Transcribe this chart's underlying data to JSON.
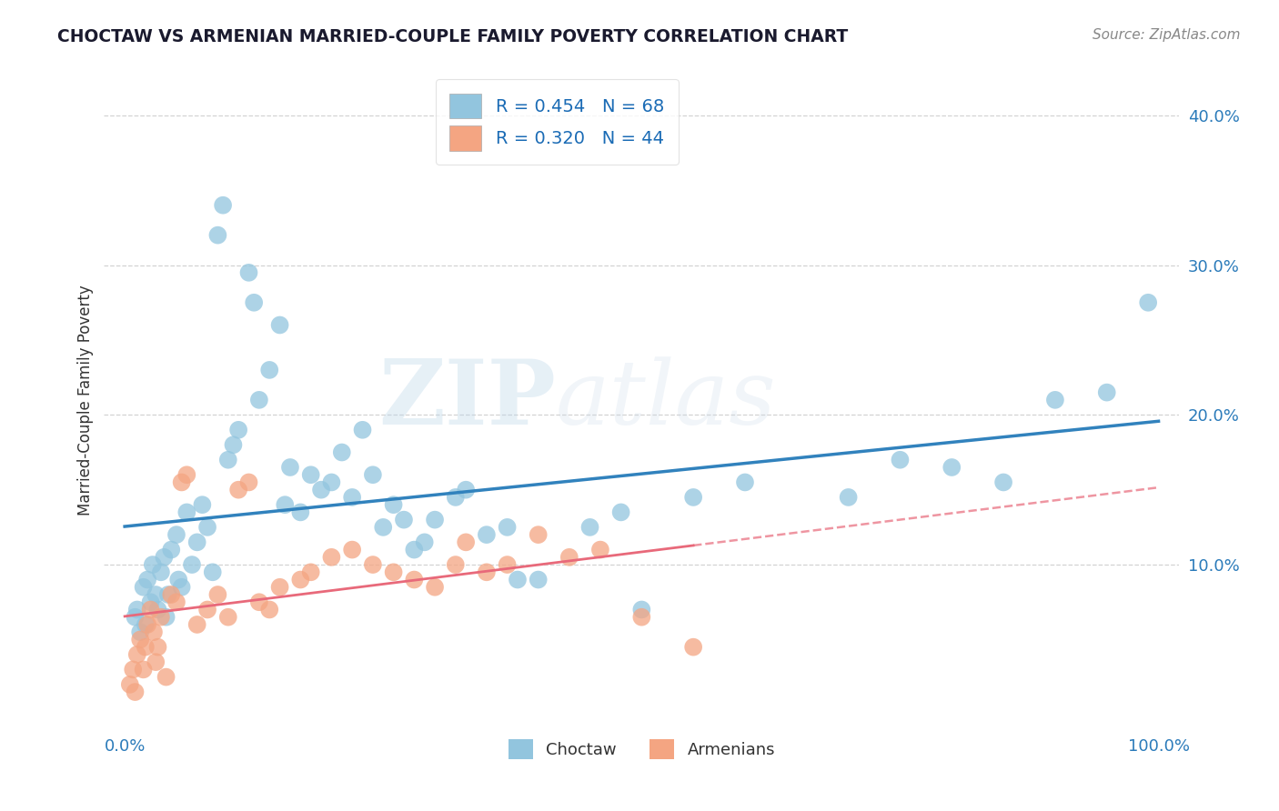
{
  "title": "CHOCTAW VS ARMENIAN MARRIED-COUPLE FAMILY POVERTY CORRELATION CHART",
  "source_text": "Source: ZipAtlas.com",
  "ylabel": "Married-Couple Family Poverty",
  "xlim": [
    -2,
    102
  ],
  "ylim": [
    -1,
    43
  ],
  "ytick_positions": [
    10,
    20,
    30,
    40
  ],
  "ytick_labels": [
    "10.0%",
    "20.0%",
    "30.0%",
    "40.0%"
  ],
  "xtick_positions": [
    0,
    100
  ],
  "xtick_labels": [
    "0.0%",
    "100.0%"
  ],
  "choctaw_color": "#92c5de",
  "armenian_color": "#f4a582",
  "choctaw_line_color": "#3182bd",
  "armenian_line_color": "#e8697a",
  "background_color": "#ffffff",
  "grid_color": "#c8c8c8",
  "R_choctaw": 0.454,
  "N_choctaw": 68,
  "R_armenian": 0.32,
  "N_armenian": 44,
  "title_color": "#1a1a2e",
  "legend_text_color": "#1a6bb5",
  "watermark_zip": "ZIP",
  "watermark_atlas": "atlas",
  "choctaw_x": [
    1.0,
    1.2,
    1.5,
    1.8,
    2.0,
    2.2,
    2.5,
    2.7,
    3.0,
    3.2,
    3.5,
    3.8,
    4.0,
    4.2,
    4.5,
    5.0,
    5.2,
    5.5,
    6.0,
    6.5,
    7.0,
    7.5,
    8.0,
    8.5,
    9.0,
    9.5,
    10.0,
    10.5,
    11.0,
    12.0,
    12.5,
    13.0,
    14.0,
    15.0,
    15.5,
    16.0,
    17.0,
    18.0,
    19.0,
    20.0,
    21.0,
    22.0,
    23.0,
    24.0,
    25.0,
    26.0,
    27.0,
    28.0,
    29.0,
    30.0,
    32.0,
    33.0,
    35.0,
    37.0,
    38.0,
    40.0,
    45.0,
    48.0,
    50.0,
    55.0,
    60.0,
    70.0,
    75.0,
    80.0,
    85.0,
    90.0,
    95.0,
    99.0
  ],
  "choctaw_y": [
    6.5,
    7.0,
    5.5,
    8.5,
    6.0,
    9.0,
    7.5,
    10.0,
    8.0,
    7.0,
    9.5,
    10.5,
    6.5,
    8.0,
    11.0,
    12.0,
    9.0,
    8.5,
    13.5,
    10.0,
    11.5,
    14.0,
    12.5,
    9.5,
    32.0,
    34.0,
    17.0,
    18.0,
    19.0,
    29.5,
    27.5,
    21.0,
    23.0,
    26.0,
    14.0,
    16.5,
    13.5,
    16.0,
    15.0,
    15.5,
    17.5,
    14.5,
    19.0,
    16.0,
    12.5,
    14.0,
    13.0,
    11.0,
    11.5,
    13.0,
    14.5,
    15.0,
    12.0,
    12.5,
    9.0,
    9.0,
    12.5,
    13.5,
    7.0,
    14.5,
    15.5,
    14.5,
    17.0,
    16.5,
    15.5,
    21.0,
    21.5,
    27.5
  ],
  "armenian_x": [
    0.5,
    0.8,
    1.0,
    1.2,
    1.5,
    1.8,
    2.0,
    2.2,
    2.5,
    2.8,
    3.0,
    3.2,
    3.5,
    4.0,
    4.5,
    5.0,
    5.5,
    6.0,
    7.0,
    8.0,
    9.0,
    10.0,
    11.0,
    12.0,
    13.0,
    14.0,
    15.0,
    17.0,
    18.0,
    20.0,
    22.0,
    24.0,
    26.0,
    28.0,
    30.0,
    32.0,
    33.0,
    35.0,
    37.0,
    40.0,
    43.0,
    46.0,
    50.0,
    55.0
  ],
  "armenian_y": [
    2.0,
    3.0,
    1.5,
    4.0,
    5.0,
    3.0,
    4.5,
    6.0,
    7.0,
    5.5,
    3.5,
    4.5,
    6.5,
    2.5,
    8.0,
    7.5,
    15.5,
    16.0,
    6.0,
    7.0,
    8.0,
    6.5,
    15.0,
    15.5,
    7.5,
    7.0,
    8.5,
    9.0,
    9.5,
    10.5,
    11.0,
    10.0,
    9.5,
    9.0,
    8.5,
    10.0,
    11.5,
    9.5,
    10.0,
    12.0,
    10.5,
    11.0,
    6.5,
    4.5
  ]
}
